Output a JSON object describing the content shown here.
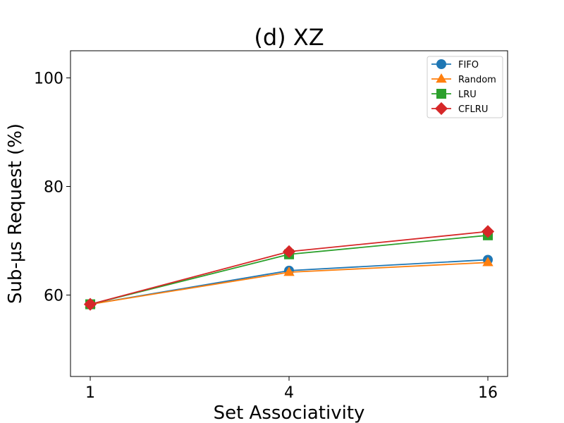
{
  "chart_data": {
    "type": "line",
    "title": "(d) XZ",
    "xlabel": "Set Associativity",
    "ylabel": "Sub-µs Request (%)",
    "x_categories": [
      "1",
      "4",
      "16"
    ],
    "yticks": [
      60,
      80,
      100
    ],
    "ylim": [
      45,
      105
    ],
    "grid": false,
    "legend_position": "top-right",
    "series": [
      {
        "name": "FIFO",
        "color": "#1f77b4",
        "marker": "circle",
        "values": [
          58.3,
          64.5,
          66.5
        ]
      },
      {
        "name": "Random",
        "color": "#ff7f0e",
        "marker": "triangle",
        "values": [
          58.3,
          64.2,
          66.0
        ]
      },
      {
        "name": "LRU",
        "color": "#2ca02c",
        "marker": "square",
        "values": [
          58.3,
          67.5,
          71.0
        ]
      },
      {
        "name": "CFLRU",
        "color": "#d62728",
        "marker": "diamond",
        "values": [
          58.3,
          68.0,
          71.7
        ]
      }
    ]
  }
}
